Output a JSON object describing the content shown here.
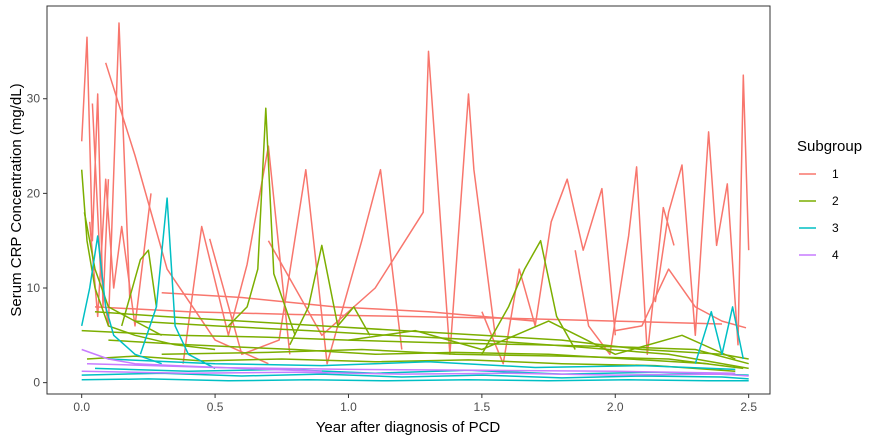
{
  "chart_data": {
    "type": "line",
    "title": "",
    "xlabel": "Year after diagnosis of PCD",
    "ylabel": "Serum CRP Concentration (mg/dL)",
    "xlim": [
      -0.13,
      2.58
    ],
    "ylim": [
      -1.2,
      39.8
    ],
    "x_ticks": [
      0.0,
      0.5,
      1.0,
      1.5,
      2.0,
      2.5
    ],
    "x_tick_labels": [
      "0.0",
      "0.5",
      "1.0",
      "1.5",
      "2.0",
      "2.5"
    ],
    "y_ticks": [
      0,
      10,
      20,
      30
    ],
    "y_tick_labels": [
      "0",
      "10",
      "20",
      "30"
    ],
    "grid": false,
    "legend": {
      "title": "Subgroup",
      "position": "right",
      "entries": [
        "1",
        "2",
        "3",
        "4"
      ]
    },
    "colors": {
      "1": "#F8766D",
      "2": "#7CAE00",
      "3": "#00BFC4",
      "4": "#C77CFF"
    },
    "series": [
      {
        "name": "1",
        "x": [
          0.0,
          0.02,
          0.04,
          0.06,
          0.08,
          0.1
        ],
        "y": [
          25.5,
          36.5,
          15.0,
          30.5,
          8.0,
          21.5
        ]
      },
      {
        "name": "1",
        "x": [
          0.04,
          0.07,
          0.1,
          0.14,
          0.18
        ],
        "y": [
          29.5,
          12.0,
          6.0,
          38.0,
          9.0
        ]
      },
      {
        "name": "1",
        "x": [
          0.09,
          0.2,
          0.32,
          0.5,
          0.7
        ],
        "y": [
          33.8,
          24.0,
          12.0,
          4.5,
          2.0
        ]
      },
      {
        "name": "1",
        "x": [
          0.03,
          0.06,
          0.09,
          0.12,
          0.15,
          0.2,
          0.26
        ],
        "y": [
          17.0,
          7.0,
          21.5,
          10.0,
          16.5,
          6.0,
          20.0
        ]
      },
      {
        "name": "1",
        "x": [
          0.05,
          0.4,
          0.8,
          1.2,
          1.6,
          2.0,
          2.4
        ],
        "y": [
          8.0,
          7.5,
          7.2,
          7.0,
          6.8,
          6.5,
          6.2
        ]
      },
      {
        "name": "1",
        "x": [
          0.38,
          0.45,
          0.55,
          0.62,
          0.7,
          0.78
        ],
        "y": [
          2.0,
          16.5,
          5.0,
          12.5,
          25.0,
          3.0
        ]
      },
      {
        "name": "1",
        "x": [
          0.48,
          0.6,
          0.74,
          0.84,
          0.92,
          1.05,
          1.12,
          1.2
        ],
        "y": [
          15.2,
          3.0,
          4.5,
          22.5,
          2.0,
          15.0,
          22.5,
          3.5
        ]
      },
      {
        "name": "1",
        "x": [
          0.7,
          0.9,
          1.1,
          1.28,
          1.3,
          1.38,
          1.45,
          1.47,
          1.55
        ],
        "y": [
          15.0,
          5.0,
          10.0,
          18.0,
          35.0,
          3.0,
          30.5,
          22.5,
          5.0
        ]
      },
      {
        "name": "1",
        "x": [
          1.5,
          1.58,
          1.64,
          1.7,
          1.76,
          1.82,
          1.88,
          1.95,
          2.0
        ],
        "y": [
          7.5,
          2.0,
          12.0,
          6.0,
          17.0,
          21.5,
          14.0,
          20.5,
          5.0
        ]
      },
      {
        "name": "1",
        "x": [
          1.85,
          1.9,
          1.98,
          2.05,
          2.08,
          2.12,
          2.18,
          2.22
        ],
        "y": [
          14.0,
          6.0,
          3.0,
          15.5,
          22.8,
          3.0,
          18.5,
          14.5
        ]
      },
      {
        "name": "1",
        "x": [
          2.15,
          2.2,
          2.25,
          2.3,
          2.35,
          2.38,
          2.42,
          2.46,
          2.48,
          2.5
        ],
        "y": [
          8.5,
          18.0,
          23.0,
          5.0,
          26.5,
          14.5,
          21.0,
          4.0,
          32.5,
          14.0
        ]
      },
      {
        "name": "1",
        "x": [
          0.3,
          0.6,
          0.95,
          1.3,
          1.7
        ],
        "y": [
          9.5,
          9.0,
          8.0,
          7.5,
          6.5
        ]
      },
      {
        "name": "1",
        "x": [
          2.0,
          2.1,
          2.2,
          2.3,
          2.4,
          2.49
        ],
        "y": [
          5.5,
          6.0,
          12.0,
          8.0,
          6.5,
          5.8
        ]
      },
      {
        "name": "2",
        "x": [
          0.0,
          0.02,
          0.05,
          0.1,
          0.2,
          0.35,
          0.5
        ],
        "y": [
          22.5,
          15.0,
          10.0,
          6.0,
          5.0,
          4.0,
          3.5
        ]
      },
      {
        "name": "2",
        "x": [
          0.01,
          0.05,
          0.1,
          0.2,
          0.3
        ],
        "y": [
          18.0,
          12.0,
          8.0,
          6.5,
          5.0
        ]
      },
      {
        "name": "2",
        "x": [
          0.55,
          0.62,
          0.66,
          0.69,
          0.72,
          0.8
        ],
        "y": [
          6.0,
          8.0,
          12.0,
          29.0,
          11.5,
          5.0
        ]
      },
      {
        "name": "2",
        "x": [
          0.78,
          0.85,
          0.9,
          0.96,
          1.02,
          1.08
        ],
        "y": [
          4.0,
          8.0,
          14.5,
          6.0,
          8.0,
          5.0
        ]
      },
      {
        "name": "2",
        "x": [
          1.5,
          1.6,
          1.66,
          1.72,
          1.78,
          1.85
        ],
        "y": [
          3.0,
          8.0,
          12.0,
          15.0,
          7.0,
          3.5
        ]
      },
      {
        "name": "2",
        "x": [
          0.05,
          0.3,
          0.6,
          0.9,
          1.2,
          1.5,
          1.8,
          2.1,
          2.4,
          2.5
        ],
        "y": [
          7.5,
          7.0,
          6.5,
          6.0,
          5.5,
          5.0,
          4.5,
          3.5,
          3.0,
          2.5
        ]
      },
      {
        "name": "2",
        "x": [
          0.0,
          0.35,
          0.7,
          1.0,
          1.35,
          1.7,
          2.0,
          2.3,
          2.5
        ],
        "y": [
          5.5,
          5.0,
          4.8,
          4.5,
          4.2,
          4.0,
          3.8,
          3.5,
          2.0
        ]
      },
      {
        "name": "2",
        "x": [
          0.1,
          0.4,
          0.8,
          1.1,
          1.4,
          1.75,
          2.05,
          2.35
        ],
        "y": [
          4.5,
          4.0,
          3.5,
          3.0,
          3.2,
          3.0,
          2.5,
          2.0
        ]
      },
      {
        "name": "2",
        "x": [
          0.2,
          0.5,
          0.85,
          1.15,
          1.5,
          1.85,
          2.2,
          2.5
        ],
        "y": [
          6.5,
          6.0,
          5.5,
          5.0,
          4.5,
          3.8,
          3.0,
          1.5
        ]
      },
      {
        "name": "2",
        "x": [
          0.15,
          0.22,
          0.25,
          0.28
        ],
        "y": [
          6.0,
          13.0,
          14.0,
          8.0
        ]
      },
      {
        "name": "2",
        "x": [
          1.0,
          1.25,
          1.5,
          1.75,
          2.0,
          2.25,
          2.45
        ],
        "y": [
          4.5,
          5.5,
          3.5,
          6.5,
          3.0,
          5.0,
          2.5
        ]
      },
      {
        "name": "2",
        "x": [
          0.3,
          0.7,
          1.05,
          1.4,
          1.8,
          2.2,
          2.48
        ],
        "y": [
          3.0,
          3.2,
          3.5,
          3.0,
          2.8,
          2.5,
          1.5
        ]
      },
      {
        "name": "2",
        "x": [
          0.02,
          0.2,
          0.45,
          0.75,
          1.1,
          1.45,
          1.8,
          2.15,
          2.45
        ],
        "y": [
          2.5,
          2.8,
          2.3,
          2.5,
          2.2,
          2.4,
          2.0,
          1.8,
          1.2
        ]
      },
      {
        "name": "3",
        "x": [
          0.0,
          0.03,
          0.06,
          0.09,
          0.12,
          0.2,
          0.3
        ],
        "y": [
          6.0,
          10.0,
          15.5,
          8.0,
          5.0,
          3.0,
          2.0
        ]
      },
      {
        "name": "3",
        "x": [
          0.22,
          0.28,
          0.32,
          0.35,
          0.4,
          0.5
        ],
        "y": [
          3.0,
          8.0,
          19.5,
          6.0,
          3.0,
          1.5
        ]
      },
      {
        "name": "3",
        "x": [
          0.0,
          0.3,
          0.6,
          0.9,
          1.2,
          1.5,
          1.8,
          2.1,
          2.4,
          2.5
        ],
        "y": [
          0.8,
          1.0,
          0.7,
          0.9,
          0.6,
          0.8,
          0.5,
          0.7,
          0.6,
          0.4
        ]
      },
      {
        "name": "3",
        "x": [
          0.05,
          0.4,
          0.75,
          1.1,
          1.45,
          1.8,
          2.15,
          2.5
        ],
        "y": [
          1.5,
          1.2,
          1.4,
          1.0,
          1.3,
          0.9,
          1.1,
          0.8
        ]
      },
      {
        "name": "3",
        "x": [
          0.0,
          0.25,
          0.55,
          0.85,
          1.15,
          1.45,
          1.75,
          2.05,
          2.35,
          2.5
        ],
        "y": [
          0.3,
          0.4,
          0.2,
          0.3,
          0.2,
          0.3,
          0.2,
          0.3,
          0.2,
          0.2
        ]
      },
      {
        "name": "3",
        "x": [
          2.3,
          2.36,
          2.4,
          2.44,
          2.48
        ],
        "y": [
          2.0,
          7.5,
          3.0,
          8.0,
          2.5
        ]
      },
      {
        "name": "3",
        "x": [
          0.1,
          0.5,
          0.9,
          1.3,
          1.7,
          2.1,
          2.45
        ],
        "y": [
          2.5,
          2.0,
          1.8,
          2.2,
          1.6,
          1.8,
          1.4
        ]
      },
      {
        "name": "4",
        "x": [
          0.0,
          0.4,
          0.8,
          1.2,
          1.6,
          2.0,
          2.4,
          2.5
        ],
        "y": [
          1.2,
          1.0,
          1.1,
          0.9,
          1.0,
          0.8,
          0.9,
          0.7
        ]
      },
      {
        "name": "4",
        "x": [
          0.02,
          0.5,
          1.0,
          1.5,
          2.0,
          2.45
        ],
        "y": [
          2.0,
          1.6,
          1.4,
          1.3,
          1.2,
          1.0
        ]
      },
      {
        "name": "4",
        "x": [
          0.0,
          0.1,
          0.2,
          0.35,
          0.6,
          0.9
        ],
        "y": [
          3.5,
          2.5,
          2.0,
          1.8,
          1.5,
          1.2
        ]
      }
    ]
  }
}
